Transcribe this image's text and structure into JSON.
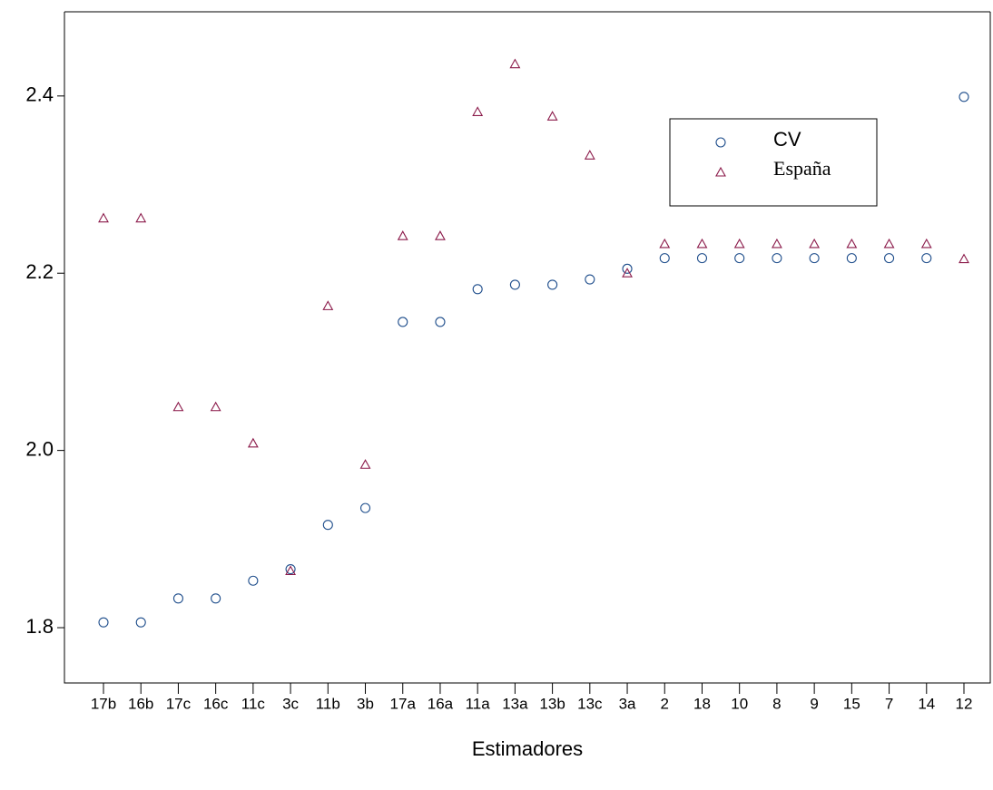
{
  "chart_data": {
    "type": "scatter",
    "x_label": "Estimadores",
    "categories": [
      "17b",
      "16b",
      "17c",
      "16c",
      "11c",
      "3c",
      "11b",
      "3b",
      "17a",
      "16a",
      "11a",
      "13a",
      "13b",
      "13c",
      "3a",
      "2",
      "18",
      "10",
      "8",
      "9",
      "15",
      "7",
      "14",
      "12"
    ],
    "series": [
      {
        "name": "CV",
        "color": "#1f4e8c",
        "marker": "circle",
        "values": [
          1.806,
          1.806,
          1.833,
          1.833,
          1.853,
          1.866,
          1.916,
          1.935,
          2.145,
          2.145,
          2.182,
          2.187,
          2.187,
          2.193,
          2.205,
          2.217,
          2.217,
          2.217,
          2.217,
          2.217,
          2.217,
          2.217,
          2.217,
          2.399
        ]
      },
      {
        "name": "España",
        "color": "#8b1a4a",
        "marker": "triangle",
        "values": [
          2.262,
          2.262,
          2.049,
          2.049,
          2.008,
          1.864,
          2.163,
          1.984,
          2.242,
          2.242,
          2.382,
          2.436,
          2.377,
          2.333,
          2.2,
          2.233,
          2.233,
          2.233,
          2.233,
          2.233,
          2.233,
          2.233,
          2.233,
          2.216
        ]
      }
    ],
    "ylim": [
      1.7376,
      2.495
    ],
    "yticks": [
      {
        "value": 1.8,
        "label": "1.8"
      },
      {
        "value": 2,
        "label": "2.0"
      },
      {
        "value": 2.2,
        "label": "2.2"
      },
      {
        "value": 2.4,
        "label": "2.4"
      }
    ],
    "grid": false,
    "legend": "upper right"
  }
}
